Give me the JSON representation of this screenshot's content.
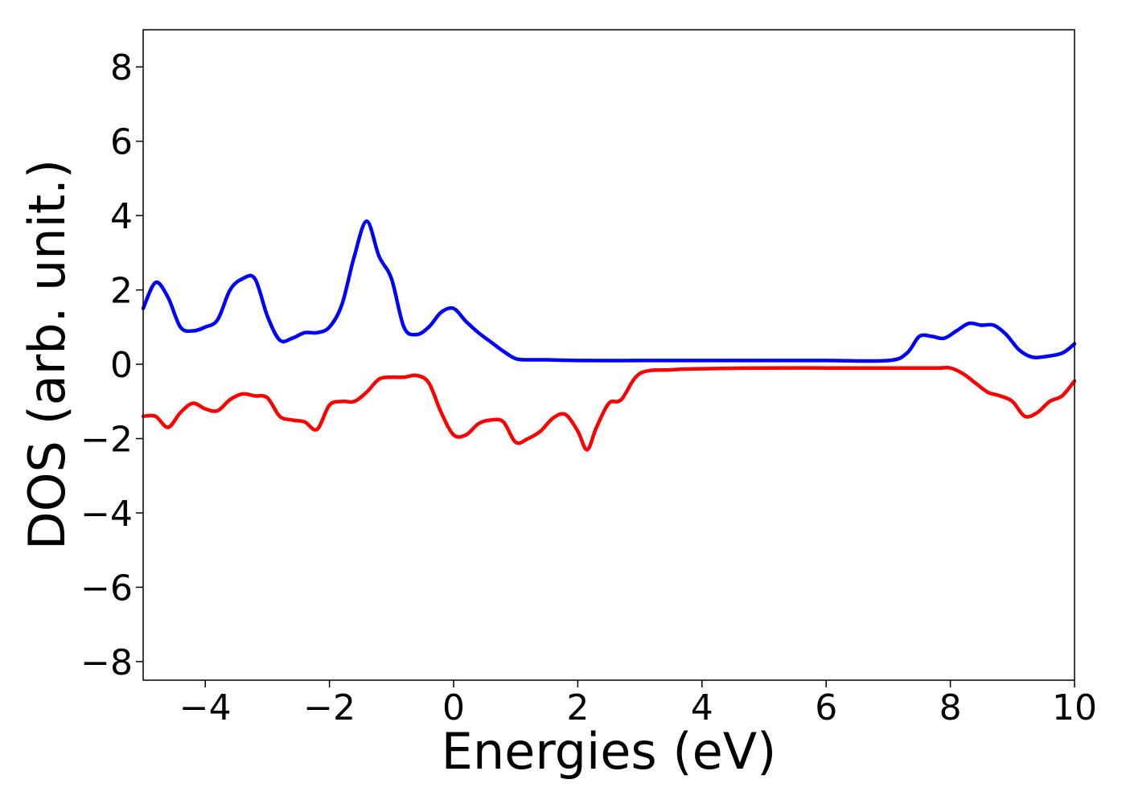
{
  "chart_data": {
    "type": "line",
    "title": "",
    "xlabel": "Energies (eV)",
    "ylabel": "DOS (arb. unit.)",
    "xlim": [
      -5,
      10
    ],
    "ylim": [
      -8.5,
      9
    ],
    "grid": false,
    "xticks": [
      -4,
      -2,
      0,
      2,
      4,
      6,
      8,
      10
    ],
    "yticks": [
      -8,
      -6,
      -4,
      -2,
      0,
      2,
      4,
      6,
      8
    ],
    "xtick_labels": [
      "−4",
      "−2",
      "0",
      "2",
      "4",
      "6",
      "8",
      "10"
    ],
    "ytick_labels": [
      "−8",
      "−6",
      "−4",
      "−2",
      "0",
      "2",
      "4",
      "6",
      "8"
    ],
    "series": [
      {
        "color": "#0000ff",
        "x": [
          -5.0,
          -4.8,
          -4.6,
          -4.4,
          -4.2,
          -4.0,
          -3.8,
          -3.6,
          -3.4,
          -3.2,
          -3.0,
          -2.8,
          -2.6,
          -2.4,
          -2.2,
          -2.0,
          -1.8,
          -1.6,
          -1.4,
          -1.2,
          -1.0,
          -0.8,
          -0.6,
          -0.4,
          -0.2,
          0.0,
          0.2,
          0.4,
          0.6,
          0.8,
          1.0,
          1.2,
          1.5,
          2.0,
          3.0,
          4.0,
          5.0,
          6.0,
          7.0,
          7.3,
          7.5,
          7.7,
          7.9,
          8.1,
          8.3,
          8.5,
          8.7,
          8.9,
          9.1,
          9.3,
          9.5,
          9.8,
          10.0
        ],
        "values": [
          1.5,
          2.2,
          1.8,
          1.0,
          0.9,
          1.0,
          1.2,
          2.0,
          2.3,
          2.3,
          1.3,
          0.65,
          0.7,
          0.85,
          0.85,
          1.0,
          1.6,
          2.9,
          3.85,
          2.9,
          2.3,
          1.0,
          0.8,
          1.0,
          1.4,
          1.5,
          1.15,
          0.85,
          0.6,
          0.35,
          0.15,
          0.12,
          0.12,
          0.1,
          0.1,
          0.1,
          0.1,
          0.1,
          0.1,
          0.3,
          0.75,
          0.75,
          0.7,
          0.9,
          1.1,
          1.05,
          1.05,
          0.8,
          0.4,
          0.2,
          0.2,
          0.3,
          0.55
        ]
      },
      {
        "color": "#ff0000",
        "x": [
          -5.0,
          -4.8,
          -4.6,
          -4.4,
          -4.2,
          -4.0,
          -3.8,
          -3.6,
          -3.4,
          -3.2,
          -3.0,
          -2.8,
          -2.6,
          -2.4,
          -2.2,
          -2.0,
          -1.8,
          -1.6,
          -1.4,
          -1.2,
          -1.0,
          -0.8,
          -0.6,
          -0.4,
          -0.2,
          0.0,
          0.2,
          0.4,
          0.6,
          0.8,
          1.0,
          1.2,
          1.4,
          1.6,
          1.8,
          2.0,
          2.15,
          2.3,
          2.5,
          2.7,
          3.0,
          3.5,
          4.0,
          5.0,
          6.0,
          7.0,
          7.8,
          8.0,
          8.2,
          8.4,
          8.6,
          8.8,
          9.0,
          9.2,
          9.4,
          9.6,
          9.8,
          10.0
        ],
        "values": [
          -1.4,
          -1.4,
          -1.7,
          -1.3,
          -1.05,
          -1.2,
          -1.25,
          -0.95,
          -0.8,
          -0.85,
          -0.9,
          -1.4,
          -1.5,
          -1.55,
          -1.75,
          -1.1,
          -1.0,
          -1.0,
          -0.75,
          -0.4,
          -0.35,
          -0.35,
          -0.3,
          -0.5,
          -1.3,
          -1.9,
          -1.9,
          -1.6,
          -1.5,
          -1.55,
          -2.1,
          -2.0,
          -1.8,
          -1.45,
          -1.35,
          -1.8,
          -2.3,
          -1.7,
          -1.05,
          -0.95,
          -0.25,
          -0.15,
          -0.12,
          -0.1,
          -0.1,
          -0.1,
          -0.1,
          -0.1,
          -0.25,
          -0.5,
          -0.75,
          -0.85,
          -1.0,
          -1.4,
          -1.3,
          -1.0,
          -0.85,
          -0.45
        ]
      }
    ]
  }
}
